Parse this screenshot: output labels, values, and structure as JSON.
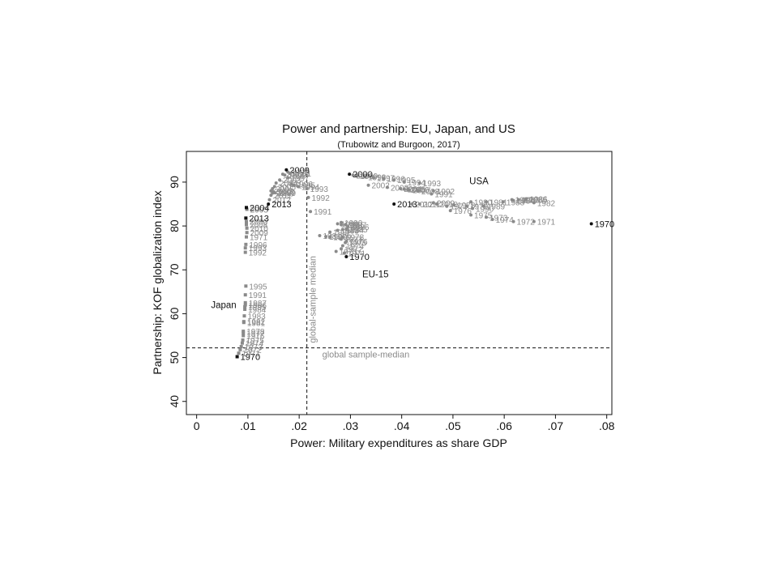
{
  "chart_data": {
    "type": "scatter",
    "title": "Power and partnership: EU, Japan, and US",
    "subtitle": "(Trubowitz and Burgoon, 2017)",
    "xlabel": "Power: Military expenditures as share GDP",
    "ylabel": "Partnership: KOF globalization index",
    "xlim": [
      -0.002,
      0.081
    ],
    "ylim": [
      37,
      97
    ],
    "x_ticks": [
      0,
      0.01,
      0.02,
      0.03,
      0.04,
      0.05,
      0.06,
      0.07,
      0.08
    ],
    "x_tick_labels": [
      "0",
      ".01",
      ".02",
      ".03",
      ".04",
      ".05",
      ".06",
      ".07",
      ".08"
    ],
    "y_ticks": [
      40,
      50,
      60,
      70,
      80,
      90
    ],
    "y_tick_labels": [
      "40",
      "50",
      "60",
      "70",
      "80",
      "90"
    ],
    "reference_lines": {
      "vertical": {
        "x": 0.0215,
        "label": "global-sample median"
      },
      "horizontal": {
        "y": 52.2,
        "label": "global sample-median"
      }
    },
    "colors": {
      "dark": "#111111",
      "light": "#8a8a8a"
    },
    "groups": [
      {
        "name": "Japan",
        "label_pos": {
          "x": 0.0028,
          "y": 61.3
        }
      },
      {
        "name": "EU-15",
        "label_pos": {
          "x": 0.0323,
          "y": 68.3
        }
      },
      {
        "name": "USA",
        "label_pos": {
          "x": 0.0532,
          "y": 89.5
        }
      }
    ],
    "series": [
      {
        "name": "USA",
        "points": [
          {
            "x": 0.077,
            "y": 80.5,
            "label": "1970",
            "dark": true
          },
          {
            "x": 0.0658,
            "y": 81.0,
            "label": "1971"
          },
          {
            "x": 0.0618,
            "y": 81.0,
            "label": "1972"
          },
          {
            "x": 0.0565,
            "y": 82.0,
            "label": "1973"
          },
          {
            "x": 0.0577,
            "y": 81.5,
            "label": "1974"
          },
          {
            "x": 0.0535,
            "y": 82.5,
            "label": "1975"
          },
          {
            "x": 0.0495,
            "y": 83.5,
            "label": "1976"
          },
          {
            "x": 0.0488,
            "y": 84.5,
            "label": "1977"
          },
          {
            "x": 0.0502,
            "y": 84.8,
            "label": "1978"
          },
          {
            "x": 0.0527,
            "y": 84.5,
            "label": "1979"
          },
          {
            "x": 0.0535,
            "y": 85.5,
            "label": "1980"
          },
          {
            "x": 0.0565,
            "y": 85.5,
            "label": "1981"
          },
          {
            "x": 0.0658,
            "y": 85.3,
            "label": "1982"
          },
          {
            "x": 0.0628,
            "y": 86.0,
            "label": "1983"
          },
          {
            "x": 0.0618,
            "y": 85.8,
            "label": "1984"
          },
          {
            "x": 0.0642,
            "y": 86.0,
            "label": "1985"
          },
          {
            "x": 0.0643,
            "y": 86.2,
            "label": "1986"
          },
          {
            "x": 0.0615,
            "y": 86.0,
            "label": "1987"
          },
          {
            "x": 0.0598,
            "y": 85.5,
            "label": "1988"
          },
          {
            "x": 0.056,
            "y": 84.5,
            "label": "1989"
          },
          {
            "x": 0.0538,
            "y": 84.0,
            "label": "1990"
          },
          {
            "x": 0.0458,
            "y": 87.3,
            "label": "1991"
          },
          {
            "x": 0.0462,
            "y": 88.0,
            "label": "1992"
          },
          {
            "x": 0.0435,
            "y": 89.8,
            "label": "1993"
          },
          {
            "x": 0.0405,
            "y": 90.0,
            "label": "1994"
          },
          {
            "x": 0.0385,
            "y": 90.5,
            "label": "1995"
          },
          {
            "x": 0.0365,
            "y": 90.8,
            "label": "1996"
          },
          {
            "x": 0.0345,
            "y": 91.0,
            "label": "1997"
          },
          {
            "x": 0.0328,
            "y": 91.2,
            "label": "1998"
          },
          {
            "x": 0.0312,
            "y": 91.5,
            "label": "1999"
          },
          {
            "x": 0.0298,
            "y": 91.8,
            "label": "2000",
            "dark": true
          },
          {
            "x": 0.0305,
            "y": 91.6,
            "label": "2001"
          },
          {
            "x": 0.0335,
            "y": 89.3,
            "label": "2002"
          },
          {
            "x": 0.0372,
            "y": 88.8,
            "label": "2003"
          },
          {
            "x": 0.0398,
            "y": 88.5,
            "label": "2004"
          },
          {
            "x": 0.0405,
            "y": 88.4,
            "label": "2005"
          },
          {
            "x": 0.0412,
            "y": 88.3,
            "label": "2006"
          },
          {
            "x": 0.0415,
            "y": 88.2,
            "label": "2007"
          },
          {
            "x": 0.0432,
            "y": 88.0,
            "label": "2008"
          },
          {
            "x": 0.0462,
            "y": 85.3,
            "label": "2009"
          },
          {
            "x": 0.0468,
            "y": 85.0,
            "label": "2010"
          },
          {
            "x": 0.0435,
            "y": 85.0,
            "label": "2011"
          },
          {
            "x": 0.042,
            "y": 85.0,
            "label": "2012"
          },
          {
            "x": 0.0385,
            "y": 85.0,
            "label": "2013",
            "dark": true
          }
        ]
      },
      {
        "name": "EU-15",
        "points": [
          {
            "x": 0.0292,
            "y": 73.0,
            "label": "1970",
            "dark": true
          },
          {
            "x": 0.0288,
            "y": 73.8,
            "label": "1971"
          },
          {
            "x": 0.0282,
            "y": 74.8,
            "label": "1972"
          },
          {
            "x": 0.0272,
            "y": 74.2,
            "label": "1973"
          },
          {
            "x": 0.0285,
            "y": 75.5,
            "label": "1974"
          },
          {
            "x": 0.029,
            "y": 76.2,
            "label": "1975"
          },
          {
            "x": 0.0292,
            "y": 76.5,
            "label": "1976"
          },
          {
            "x": 0.0282,
            "y": 77.0,
            "label": "1977"
          },
          {
            "x": 0.0285,
            "y": 77.5,
            "label": "1978"
          },
          {
            "x": 0.026,
            "y": 77.5,
            "label": "1979"
          },
          {
            "x": 0.0252,
            "y": 77.6,
            "label": "1980"
          },
          {
            "x": 0.024,
            "y": 77.8,
            "label": "1981"
          },
          {
            "x": 0.026,
            "y": 78.6,
            "label": "1982"
          },
          {
            "x": 0.0275,
            "y": 79.0,
            "label": "1983"
          },
          {
            "x": 0.0285,
            "y": 79.2,
            "label": "1984"
          },
          {
            "x": 0.0292,
            "y": 79.3,
            "label": "1985"
          },
          {
            "x": 0.0295,
            "y": 79.8,
            "label": "1986"
          },
          {
            "x": 0.029,
            "y": 80.3,
            "label": "1987"
          },
          {
            "x": 0.0282,
            "y": 80.3,
            "label": "1988"
          },
          {
            "x": 0.0275,
            "y": 80.5,
            "label": "1989"
          },
          {
            "x": 0.0282,
            "y": 80.8,
            "label": "1990"
          },
          {
            "x": 0.0222,
            "y": 83.3,
            "label": "1991"
          },
          {
            "x": 0.0218,
            "y": 86.5,
            "label": "1992"
          },
          {
            "x": 0.0215,
            "y": 88.5,
            "label": "1993"
          },
          {
            "x": 0.0198,
            "y": 89.0,
            "label": "1994"
          },
          {
            "x": 0.019,
            "y": 89.3,
            "label": "1995"
          },
          {
            "x": 0.0185,
            "y": 89.6,
            "label": "1996"
          },
          {
            "x": 0.0178,
            "y": 91.0,
            "label": "1997"
          },
          {
            "x": 0.0172,
            "y": 91.6,
            "label": "1998"
          },
          {
            "x": 0.0178,
            "y": 92.3,
            "label": "1999"
          },
          {
            "x": 0.0175,
            "y": 92.8,
            "label": "2000",
            "dark": true
          },
          {
            "x": 0.0182,
            "y": 92.0,
            "label": "2001"
          },
          {
            "x": 0.0168,
            "y": 91.8,
            "label": "2002"
          },
          {
            "x": 0.0162,
            "y": 90.5,
            "label": "2003"
          },
          {
            "x": 0.0155,
            "y": 89.8,
            "label": "2004"
          },
          {
            "x": 0.0152,
            "y": 89.0,
            "label": "2005"
          },
          {
            "x": 0.0148,
            "y": 88.5,
            "label": "2006"
          },
          {
            "x": 0.0145,
            "y": 88.0,
            "label": "2007"
          },
          {
            "x": 0.0148,
            "y": 87.5,
            "label": "2008"
          },
          {
            "x": 0.0152,
            "y": 87.6,
            "label": "2009"
          },
          {
            "x": 0.015,
            "y": 87.8,
            "label": "2010"
          },
          {
            "x": 0.0145,
            "y": 87.0,
            "label": "2011"
          },
          {
            "x": 0.0142,
            "y": 86.0,
            "label": "2012"
          },
          {
            "x": 0.014,
            "y": 85.0,
            "label": "2013",
            "dark": true
          }
        ]
      },
      {
        "name": "Japan",
        "points": [
          {
            "x": 0.0079,
            "y": 50.2,
            "label": "1970",
            "dark": true
          },
          {
            "x": 0.0082,
            "y": 51.0,
            "label": "1971"
          },
          {
            "x": 0.0085,
            "y": 51.8,
            "label": "1972"
          },
          {
            "x": 0.0087,
            "y": 52.5,
            "label": "1973"
          },
          {
            "x": 0.0089,
            "y": 53.3,
            "label": "1974"
          },
          {
            "x": 0.009,
            "y": 54.0,
            "label": "1975"
          },
          {
            "x": 0.0091,
            "y": 55.0,
            "label": "1976"
          },
          {
            "x": 0.0091,
            "y": 55.6,
            "label": "1977"
          },
          {
            "x": 0.0091,
            "y": 56.0,
            "label": "1978"
          },
          {
            "x": 0.0092,
            "y": 58.0,
            "label": "1981"
          },
          {
            "x": 0.0092,
            "y": 58.2,
            "label": "1982"
          },
          {
            "x": 0.0093,
            "y": 59.5,
            "label": "1983"
          },
          {
            "x": 0.0094,
            "y": 61.0,
            "label": "1984"
          },
          {
            "x": 0.0094,
            "y": 61.6,
            "label": "1985"
          },
          {
            "x": 0.0095,
            "y": 62.0,
            "label": "1986"
          },
          {
            "x": 0.0095,
            "y": 62.5,
            "label": "1987"
          },
          {
            "x": 0.0095,
            "y": 64.3,
            "label": "1991"
          },
          {
            "x": 0.0096,
            "y": 66.3,
            "label": "1995"
          },
          {
            "x": 0.0095,
            "y": 74.0,
            "label": "1992"
          },
          {
            "x": 0.0095,
            "y": 75.0,
            "label": "1993"
          },
          {
            "x": 0.0096,
            "y": 75.8,
            "label": "1996"
          },
          {
            "x": 0.0097,
            "y": 77.5,
            "label": "1971"
          },
          {
            "x": 0.0098,
            "y": 78.5,
            "label": "2009"
          },
          {
            "x": 0.0098,
            "y": 79.5,
            "label": "2010"
          },
          {
            "x": 0.0097,
            "y": 80.3,
            "label": "2008"
          },
          {
            "x": 0.0097,
            "y": 81.0,
            "label": "2000"
          },
          {
            "x": 0.0096,
            "y": 81.8,
            "label": "2013",
            "dark": true
          },
          {
            "x": 0.0098,
            "y": 83.8,
            "label": "2003"
          },
          {
            "x": 0.0097,
            "y": 84.2,
            "label": "2004",
            "dark": true
          }
        ]
      }
    ]
  }
}
